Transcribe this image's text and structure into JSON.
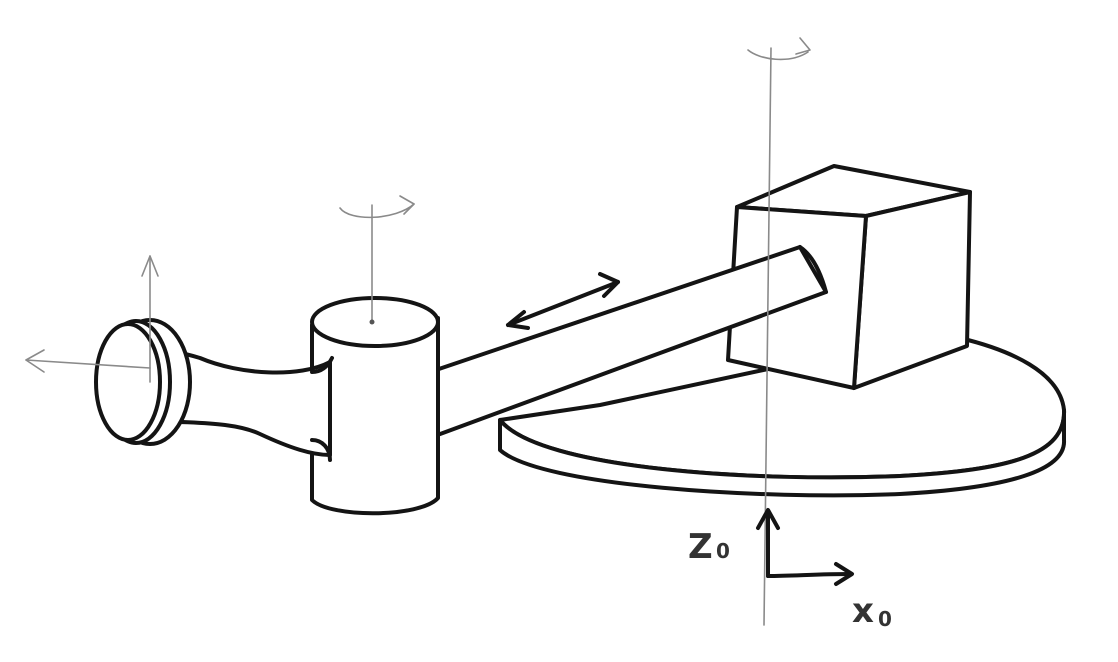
{
  "axes": {
    "z_label": "Z",
    "z_subscript": "0",
    "x_label": "x",
    "x_subscript": "0"
  },
  "colors": {
    "ink": "#141414",
    "pencil": "#8a8a8a",
    "paper": "#ffffff"
  }
}
